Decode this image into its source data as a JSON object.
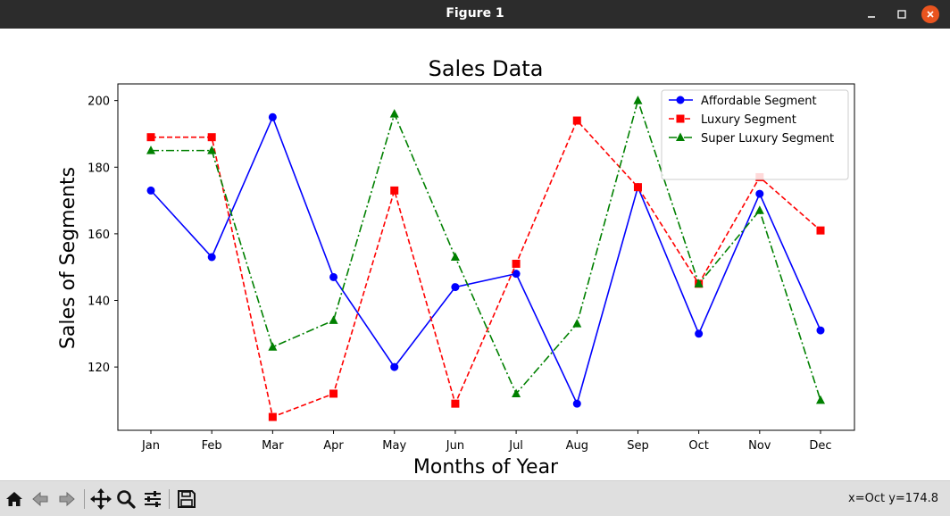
{
  "window": {
    "title": "Figure 1",
    "controls": {
      "minimize_icon": "minimize-icon",
      "maximize_icon": "maximize-icon",
      "close_icon": "close-icon",
      "close_color": "#e9541f"
    }
  },
  "toolbar": {
    "buttons": [
      "home-icon",
      "back-arrow-icon",
      "forward-arrow-icon",
      "pan-move-icon",
      "zoom-magnifier-icon",
      "configure-subplots-icon",
      "save-floppy-icon"
    ],
    "coordinate_readout": "x=Oct y=174.8"
  },
  "chart_data": {
    "type": "line",
    "title": "Sales Data",
    "xlabel": "Months of Year",
    "ylabel": "Sales of Segments",
    "categories": [
      "Jan",
      "Feb",
      "Mar",
      "Apr",
      "May",
      "Jun",
      "Jul",
      "Aug",
      "Sep",
      "Oct",
      "Nov",
      "Dec"
    ],
    "ylim": [
      101,
      205
    ],
    "yticks": [
      120,
      140,
      160,
      180,
      200
    ],
    "grid": false,
    "legend_position": "top-right",
    "series": [
      {
        "name": "Affordable Segment",
        "color": "#0000ff",
        "linestyle": "solid",
        "marker": "circle",
        "values": [
          173,
          153,
          195,
          147,
          120,
          144,
          148,
          109,
          174,
          130,
          172,
          131
        ]
      },
      {
        "name": "Luxury Segment",
        "color": "#ff0000",
        "linestyle": "dashed",
        "marker": "square",
        "values": [
          189,
          189,
          105,
          112,
          173,
          109,
          151,
          194,
          174,
          145,
          177,
          161
        ]
      },
      {
        "name": "Super Luxury Segment",
        "color": "#008000",
        "linestyle": "dashdot",
        "marker": "triangle",
        "values": [
          185,
          185,
          126,
          134,
          196,
          153,
          112,
          133,
          200,
          145,
          167,
          110
        ]
      }
    ]
  }
}
